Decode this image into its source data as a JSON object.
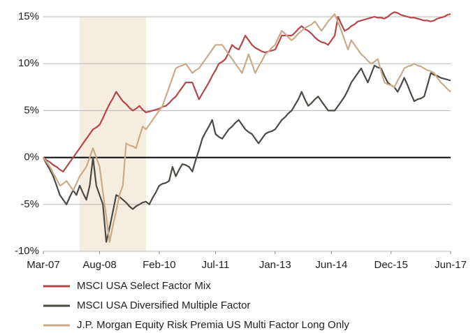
{
  "chart_data": {
    "type": "line",
    "categories": [
      "Mar-07",
      null,
      null,
      null,
      null,
      null,
      null,
      null,
      null,
      null,
      null,
      null,
      null,
      null,
      null,
      null,
      null,
      "Aug-08",
      null,
      null,
      null,
      null,
      null,
      null,
      null,
      null,
      null,
      null,
      null,
      null,
      null,
      null,
      null,
      null,
      null,
      "Feb-10",
      null,
      null,
      null,
      null,
      null,
      null,
      null,
      null,
      null,
      null,
      null,
      null,
      null,
      null,
      null,
      null,
      "Jul-11",
      null,
      null,
      null,
      null,
      null,
      null,
      null,
      null,
      null,
      null,
      null,
      null,
      null,
      null,
      null,
      null,
      null,
      "Jan-13",
      null,
      null,
      null,
      null,
      null,
      null,
      null,
      null,
      null,
      null,
      null,
      null,
      null,
      null,
      null,
      null,
      "Jun-14",
      null,
      null,
      null,
      null,
      null,
      null,
      null,
      null,
      null,
      null,
      null,
      null,
      null,
      null,
      null,
      null,
      null,
      "Dec-15",
      null,
      null,
      null,
      null,
      null,
      null,
      null,
      null,
      null,
      null,
      null,
      null,
      null,
      null,
      null,
      null,
      null,
      "Jun-17"
    ],
    "series": [
      {
        "name": "MSCI USA Select Factor Mix",
        "color": "#b5474b",
        "values": [
          0,
          -0.3,
          -0.5,
          -0.8,
          -1,
          -1.3,
          -1.5,
          -1,
          -0.5,
          0,
          0.5,
          1,
          1.5,
          2,
          2.5,
          3,
          3.2,
          3.5,
          4.2,
          5,
          5.7,
          6.3,
          7,
          6.5,
          6,
          5.7,
          5.3,
          5,
          5.2,
          5.5,
          5.1,
          4.8,
          4.9,
          5,
          5.1,
          5.2,
          5.4,
          5.5,
          5.8,
          6.2,
          6.5,
          7,
          7.5,
          8,
          8,
          8,
          7.1,
          6.2,
          6.8,
          7.4,
          8,
          8.7,
          9.3,
          10,
          10.2,
          10.5,
          11.2,
          12,
          11.7,
          11.5,
          12.2,
          13,
          12.5,
          12,
          11.7,
          11.5,
          11.3,
          11.2,
          11.3,
          11.4,
          11.5,
          12.2,
          13,
          13,
          13,
          13,
          13.3,
          13.7,
          14,
          13.7,
          13.5,
          13.2,
          12.8,
          12.5,
          12.3,
          12.2,
          12,
          12.5,
          13,
          15,
          14.2,
          13.5,
          13.7,
          14,
          14.2,
          14.5,
          14.6,
          14.7,
          14.8,
          14.9,
          15,
          14.9,
          14.9,
          14.8,
          15,
          15.3,
          15.5,
          15.4,
          15.2,
          15.1,
          15,
          14.9,
          14.9,
          14.8,
          14.7,
          14.6,
          14.6,
          14.5,
          14.6,
          14.8,
          14.9,
          15,
          15.2,
          15.3
        ]
      },
      {
        "name": "MSCI USA Diversified Multiple Factor",
        "color": "#4d4a45",
        "values": [
          0,
          -0.7,
          -1.3,
          -2,
          -3,
          -4,
          -4.5,
          -5,
          -4.2,
          -3.5,
          -4,
          -3,
          -3.8,
          -4.5,
          -3,
          0,
          -3,
          -4,
          -5,
          -9,
          -7.5,
          -5.8,
          -4,
          -4.2,
          -4.5,
          -4.8,
          -5.2,
          -5.5,
          -5.2,
          -5,
          -4.8,
          -4.7,
          -5,
          -4.3,
          -3.7,
          -3,
          -2.8,
          -2.7,
          -2.5,
          -1,
          -2,
          -1.3,
          -0.7,
          -0.8,
          -1,
          -1.5,
          -0.3,
          0.8,
          2,
          2.7,
          3.3,
          4,
          2.5,
          2.2,
          2,
          2.5,
          3,
          3.3,
          3.7,
          4,
          3.5,
          3,
          2.7,
          2.5,
          2,
          1.5,
          2,
          2.5,
          2.7,
          2.8,
          3,
          3.5,
          4,
          4.3,
          4.7,
          5,
          5.6,
          6.2,
          7,
          6.2,
          5.5,
          5.8,
          6.2,
          6.5,
          6,
          5.5,
          5,
          5,
          5,
          5.5,
          6,
          6.5,
          7.2,
          8,
          8.5,
          9,
          9.5,
          8.7,
          8,
          8.9,
          9.8,
          9.6,
          9.5,
          8.7,
          8,
          7.7,
          7.5,
          7,
          7.7,
          8.5,
          7.7,
          6.8,
          6,
          6.2,
          6.3,
          6.5,
          7.7,
          9,
          8.8,
          8.7,
          8.5,
          8.4,
          8.3,
          8.2
        ]
      },
      {
        "name": "J.P. Morgan Equity Risk Premia US Multi Factor Long Only",
        "color": "#c9ab8a",
        "values": [
          0,
          -0.5,
          -1,
          -1.7,
          -2.3,
          -3,
          -2.8,
          -2.5,
          -3,
          -3.5,
          -2.8,
          -2,
          -1.5,
          -1,
          0,
          1,
          0,
          -1,
          -3.7,
          -6.3,
          -9,
          -7.3,
          -5.7,
          -4,
          -3,
          1.5,
          1.3,
          1.2,
          1,
          2.2,
          3.3,
          3,
          3.5,
          4,
          4.5,
          5,
          5.5,
          6.5,
          7.5,
          8.5,
          9.5,
          9.7,
          9.8,
          10,
          9.5,
          9,
          9.3,
          9.5,
          10,
          10.5,
          11,
          11.5,
          12,
          12,
          12,
          11.5,
          11,
          10.5,
          10,
          9.5,
          9,
          10,
          11,
          10,
          9,
          9.7,
          10.3,
          11,
          11.3,
          11.7,
          12,
          12.8,
          13.5,
          13.2,
          12.8,
          12.5,
          12.8,
          13.2,
          13.5,
          13.8,
          14,
          14.2,
          14.5,
          14,
          13.5,
          14,
          14.5,
          14.9,
          15.3,
          14.4,
          13.5,
          12.5,
          11.5,
          12.5,
          12,
          11.5,
          11,
          10.7,
          10.3,
          10,
          10.2,
          10.5,
          9.2,
          8,
          7.8,
          7.7,
          7.5,
          8.2,
          8.8,
          9.5,
          9.7,
          9.8,
          10,
          9.8,
          9.7,
          9.5,
          9.3,
          9.2,
          9,
          8.5,
          8,
          7.7,
          7.3,
          7
        ]
      }
    ],
    "ylim": [
      -10,
      15
    ],
    "yticks": [
      {
        "value": -10,
        "label": "-10%"
      },
      {
        "value": -5,
        "label": "-5%"
      },
      {
        "value": 0,
        "label": "0%"
      },
      {
        "value": 5,
        "label": "5%"
      },
      {
        "value": 10,
        "label": "10%"
      },
      {
        "value": 15,
        "label": "15%"
      }
    ],
    "grid": true,
    "shaded_range": [
      11,
      31
    ],
    "shade_color": "#f6ecdf",
    "legend": "bottom"
  }
}
